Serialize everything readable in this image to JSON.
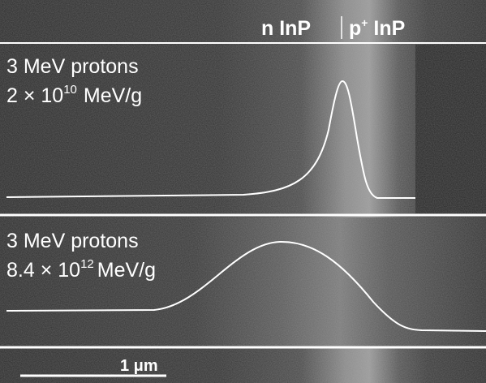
{
  "header": {
    "left_label": "n InP",
    "right_label": {
      "base": "p",
      "sup": "+",
      "rest": " InP"
    }
  },
  "panels": [
    {
      "line1": "3 MeV protons",
      "line2": {
        "base": "2 × 10",
        "exp": "10",
        "unit": "MeV/g"
      }
    },
    {
      "line1": "3 MeV protons",
      "line2": {
        "base": "8.4 × 10",
        "exp": "12",
        "unit": "MeV/g"
      }
    }
  ],
  "scale_bar": {
    "label": "1 μm"
  }
}
